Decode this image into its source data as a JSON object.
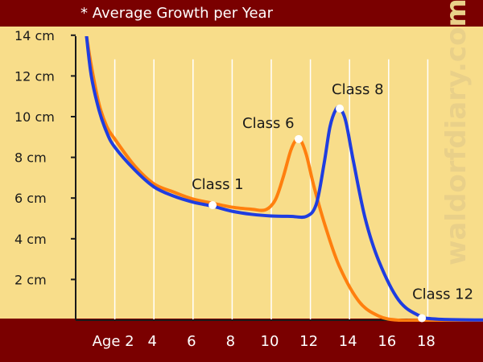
{
  "title": "* Average Growth per Year",
  "watermark": "waldorfdiary.com",
  "colors": {
    "background_frame": "#7a0000",
    "plot_background": "#f8dd8a",
    "orange_series": "#ff7f0e",
    "blue_series": "#1f3de0",
    "gridline": "#ffffff",
    "marker": "#ffffff"
  },
  "chart_data": {
    "type": "line",
    "title": "* Average Growth per Year",
    "xlabel": "",
    "ylabel": "",
    "x_tick_labels": [
      {
        "x": 2,
        "label": "Age 2"
      },
      {
        "x": 4,
        "label": "4"
      },
      {
        "x": 6,
        "label": "6"
      },
      {
        "x": 8,
        "label": "8"
      },
      {
        "x": 10,
        "label": "10"
      },
      {
        "x": 12,
        "label": "12"
      },
      {
        "x": 14,
        "label": "14"
      },
      {
        "x": 16,
        "label": "16"
      },
      {
        "x": 18,
        "label": "18"
      }
    ],
    "y_tick_labels": [
      {
        "y": 2,
        "label": "2 cm"
      },
      {
        "y": 4,
        "label": "4 cm"
      },
      {
        "y": 6,
        "label": "6 cm"
      },
      {
        "y": 8,
        "label": "8 cm"
      },
      {
        "y": 10,
        "label": "10 cm"
      },
      {
        "y": 12,
        "label": "12 cm"
      },
      {
        "y": 14,
        "label": "14 cm"
      }
    ],
    "xlim": [
      0,
      22
    ],
    "ylim": [
      0,
      14
    ],
    "grid": "vertical lines at even ages",
    "series": [
      {
        "color": "#ff7f0e",
        "x": [
          0.55,
          0.8,
          1.2,
          1.6,
          2.0,
          3.0,
          4.0,
          5.0,
          6.0,
          7.0,
          8.0,
          9.0,
          9.7,
          10.2,
          10.6,
          11.0,
          11.3,
          11.5,
          11.8,
          12.2,
          12.8,
          13.5,
          14.5,
          15.5,
          16.5,
          18.0,
          22.0
        ],
        "y": [
          14.0,
          12.5,
          10.6,
          9.5,
          8.9,
          7.6,
          6.7,
          6.3,
          5.95,
          5.75,
          5.55,
          5.45,
          5.42,
          5.9,
          7.0,
          8.35,
          8.9,
          8.85,
          8.1,
          6.5,
          4.5,
          2.6,
          0.9,
          0.2,
          0.0,
          0.0,
          0.0
        ]
      },
      {
        "color": "#1f3de0",
        "x": [
          0.55,
          0.8,
          1.2,
          1.6,
          2.0,
          3.0,
          4.0,
          5.0,
          6.0,
          7.0,
          8.0,
          9.0,
          10.0,
          11.0,
          11.8,
          12.3,
          12.7,
          13.0,
          13.3,
          13.5,
          13.8,
          14.2,
          14.8,
          15.5,
          16.5,
          17.5,
          18.5,
          22.0
        ],
        "y": [
          14.0,
          12.0,
          10.3,
          9.2,
          8.5,
          7.4,
          6.55,
          6.1,
          5.8,
          5.6,
          5.35,
          5.2,
          5.12,
          5.1,
          5.1,
          5.7,
          7.7,
          9.5,
          10.35,
          10.4,
          9.8,
          7.8,
          5.0,
          2.9,
          1.0,
          0.25,
          0.05,
          0.0
        ]
      }
    ],
    "markers": [
      {
        "label": "Class 1",
        "x": 7.0,
        "y": 5.65
      },
      {
        "label": "Class 6",
        "x": 11.4,
        "y": 8.9
      },
      {
        "label": "Class 8",
        "x": 13.5,
        "y": 10.4
      },
      {
        "label": "Class 12",
        "x": 17.7,
        "y": 0.1
      }
    ]
  }
}
